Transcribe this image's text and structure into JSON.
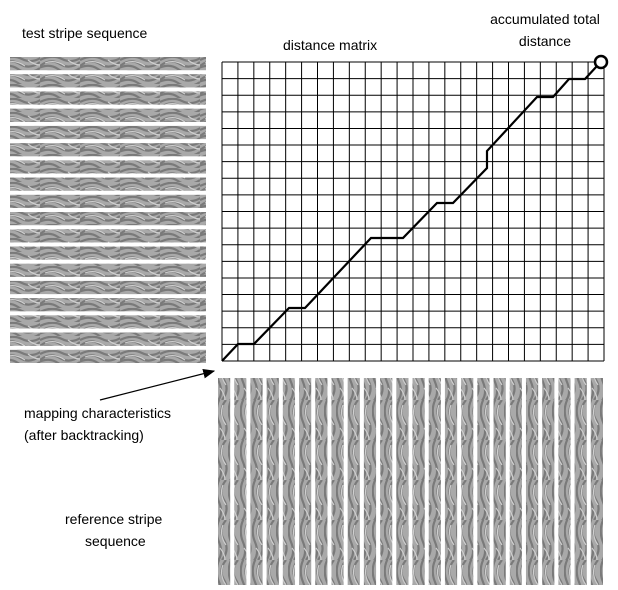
{
  "labels": {
    "test_sequence": "test stripe sequence",
    "matrix": "distance matrix",
    "accumulated": [
      "accumulated total",
      "distance"
    ],
    "mapping": [
      "mapping characteristics",
      "(after backtracking)"
    ],
    "reference": [
      "reference stripe",
      "sequence"
    ]
  }
}
